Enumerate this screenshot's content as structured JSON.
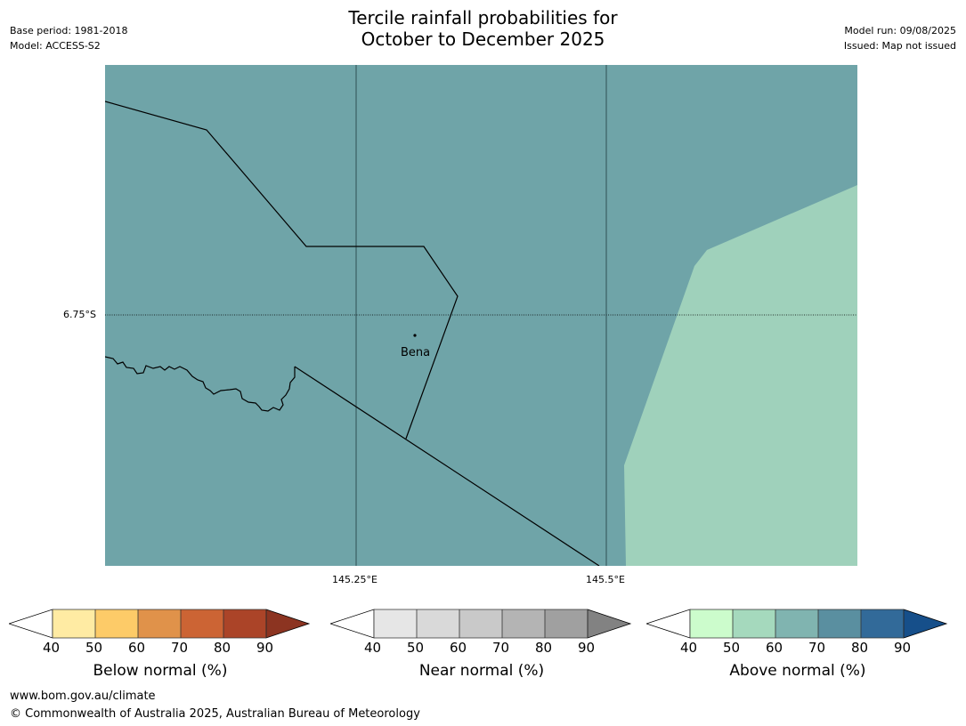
{
  "header": {
    "title_line1": "Tercile rainfall probabilities for",
    "title_line2": "October to December 2025",
    "base_period": "Base period: 1981-2018",
    "model": "Model: ACCESS-S2",
    "model_run": "Model run: 09/08/2025",
    "issued": "Issued: Map not issued"
  },
  "map": {
    "lat_label": "6.75°S",
    "lon_labels": [
      "145.25°E",
      "145.5°E"
    ],
    "town": "Bena",
    "colors": {
      "near_normal_60": "#6fa4a8",
      "above_normal_50": "#9fd1bb"
    }
  },
  "colorbars": [
    {
      "title": "Below normal (%)",
      "ticks": [
        "40",
        "50",
        "60",
        "70",
        "80",
        "90"
      ],
      "colors": [
        "#ffffff",
        "#ffeba3",
        "#fdcb68",
        "#e0924a",
        "#cc6434",
        "#ab4428",
        "#8c3421"
      ]
    },
    {
      "title": "Near normal (%)",
      "ticks": [
        "40",
        "50",
        "60",
        "70",
        "80",
        "90"
      ],
      "colors": [
        "#ffffff",
        "#e6e6e6",
        "#d9d9d9",
        "#c9c9c9",
        "#b4b4b4",
        "#a0a0a0",
        "#828282"
      ]
    },
    {
      "title": "Above normal (%)",
      "ticks": [
        "40",
        "50",
        "60",
        "70",
        "80",
        "90"
      ],
      "colors": [
        "#ffffff",
        "#ccfccc",
        "#a5d9bd",
        "#80b4b0",
        "#5a8fa0",
        "#326a99",
        "#164f8a"
      ]
    }
  ],
  "footer": {
    "url": "www.bom.gov.au/climate",
    "copyright": "© Commonwealth of Australia 2025, Australian Bureau of Meteorology"
  }
}
